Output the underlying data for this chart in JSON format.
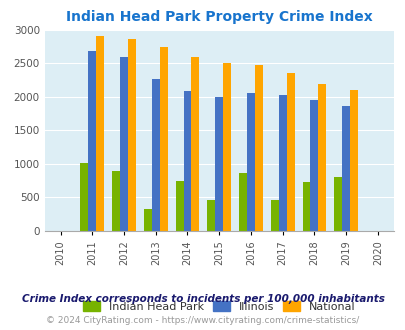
{
  "title": "Indian Head Park Property Crime Index",
  "title_color": "#1874CD",
  "years": [
    2010,
    2011,
    2012,
    2013,
    2014,
    2015,
    2016,
    2017,
    2018,
    2019,
    2020
  ],
  "bar_years": [
    2011,
    2012,
    2013,
    2014,
    2015,
    2016,
    2017,
    2018,
    2019
  ],
  "indian_head_park": [
    1010,
    895,
    325,
    750,
    455,
    865,
    455,
    730,
    810
  ],
  "illinois": [
    2680,
    2590,
    2270,
    2080,
    2000,
    2060,
    2020,
    1950,
    1860
  ],
  "national": [
    2900,
    2860,
    2740,
    2600,
    2500,
    2470,
    2360,
    2185,
    2100
  ],
  "color_ihp": "#77b300",
  "color_illinois": "#4472c4",
  "color_national": "#ffa500",
  "background_color": "#ddeef5",
  "ylim": [
    0,
    3000
  ],
  "yticks": [
    0,
    500,
    1000,
    1500,
    2000,
    2500,
    3000
  ],
  "legend_labels": [
    "Indian Head Park",
    "Illinois",
    "National"
  ],
  "footnote1": "Crime Index corresponds to incidents per 100,000 inhabitants",
  "footnote2": "© 2024 CityRating.com - https://www.cityrating.com/crime-statistics/",
  "footnote1_color": "#1a1a6e",
  "footnote2_color": "#999999",
  "legend_text_color": "#333333"
}
